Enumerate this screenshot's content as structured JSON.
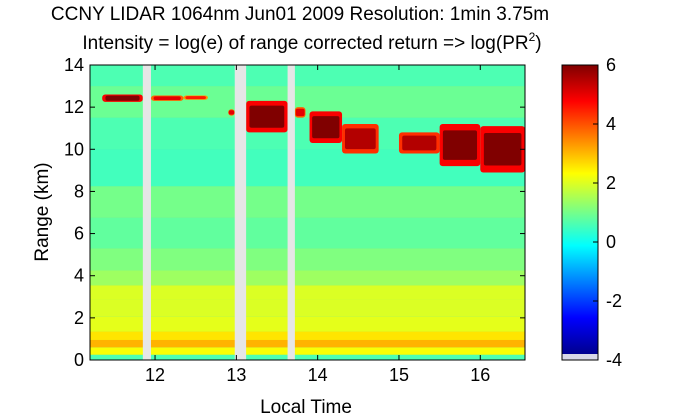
{
  "chart_data": {
    "type": "heatmap",
    "title_line1": "CCNY LIDAR 1064nm Jun01 2009 Resolution: 1min 3.75m",
    "title_line2_prefix": "Intensity = log(e) of range corrected return => log(PR",
    "title_line2_sup": "2",
    "title_line2_suffix": ")",
    "xlabel": "Local Time",
    "ylabel": "Range (km)",
    "xlim": [
      11.2,
      16.55
    ],
    "ylim": [
      0,
      14
    ],
    "xticks": [
      12,
      13,
      14,
      15,
      16
    ],
    "yticks": [
      0,
      2,
      4,
      6,
      8,
      10,
      12,
      14
    ],
    "colorbar": {
      "range": [
        -4,
        6
      ],
      "ticks": [
        -4,
        -2,
        0,
        2,
        4,
        6
      ],
      "colormap": "jet"
    },
    "data_gaps": [
      {
        "start": 11.85,
        "end": 11.95
      },
      {
        "start": 12.98,
        "end": 13.12
      },
      {
        "start": 13.63,
        "end": 13.72
      }
    ],
    "background_profile": [
      {
        "range_km": 0.1,
        "value": 0.5
      },
      {
        "range_km": 0.4,
        "value": 2.2
      },
      {
        "range_km": 0.8,
        "value": 3.0
      },
      {
        "range_km": 1.1,
        "value": 2.5
      },
      {
        "range_km": 1.6,
        "value": 2.0
      },
      {
        "range_km": 2.5,
        "value": 1.9
      },
      {
        "range_km": 3.2,
        "value": 1.9
      },
      {
        "range_km": 3.9,
        "value": 1.3
      },
      {
        "range_km": 4.6,
        "value": 1.0
      },
      {
        "range_km": 6.0,
        "value": 0.7
      },
      {
        "range_km": 7.5,
        "value": 0.9
      },
      {
        "range_km": 9.0,
        "value": 0.4
      },
      {
        "range_km": 11.0,
        "value": 0.5
      },
      {
        "range_km": 12.0,
        "value": 0.8
      },
      {
        "range_km": 14.0,
        "value": 0.5
      }
    ],
    "cloud_features": [
      {
        "t_start": 11.35,
        "t_end": 11.85,
        "base_km": 12.25,
        "top_km": 12.6,
        "value": 6
      },
      {
        "t_start": 11.95,
        "t_end": 12.35,
        "base_km": 12.3,
        "top_km": 12.55,
        "value": 5
      },
      {
        "t_start": 12.35,
        "t_end": 12.65,
        "base_km": 12.35,
        "top_km": 12.55,
        "value": 4.5
      },
      {
        "t_start": 12.9,
        "t_end": 12.98,
        "base_km": 11.6,
        "top_km": 11.9,
        "value": 5
      },
      {
        "t_start": 13.12,
        "t_end": 13.63,
        "base_km": 10.8,
        "top_km": 12.3,
        "value": 6
      },
      {
        "t_start": 13.72,
        "t_end": 13.85,
        "base_km": 11.5,
        "top_km": 12.0,
        "value": 5
      },
      {
        "t_start": 13.9,
        "t_end": 14.3,
        "base_km": 10.3,
        "top_km": 11.8,
        "value": 6
      },
      {
        "t_start": 14.3,
        "t_end": 14.75,
        "base_km": 9.8,
        "top_km": 11.2,
        "value": 5.5
      },
      {
        "t_start": 15.0,
        "t_end": 15.5,
        "base_km": 9.8,
        "top_km": 10.8,
        "value": 5.5
      },
      {
        "t_start": 15.5,
        "t_end": 16.0,
        "base_km": 9.2,
        "top_km": 11.2,
        "value": 6
      },
      {
        "t_start": 16.0,
        "t_end": 16.55,
        "base_km": 8.9,
        "top_km": 11.1,
        "value": 6
      }
    ],
    "grid": false
  }
}
